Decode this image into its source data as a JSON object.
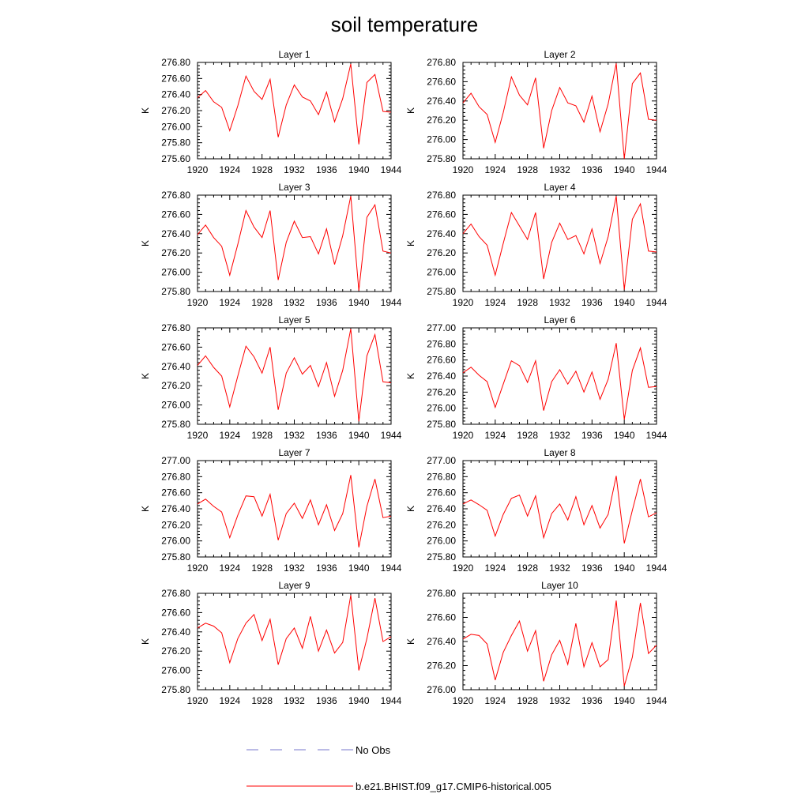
{
  "figure": {
    "title": "soil temperature"
  },
  "legend": {
    "items": [
      {
        "label": "No Obs",
        "color": "#7777cc",
        "style": "dashed"
      },
      {
        "label": "b.e21.BHIST.f09_g17.CMIP6-historical.005",
        "color": "#ff0000",
        "style": "solid"
      }
    ]
  },
  "chart_data": [
    {
      "type": "line",
      "title": "Layer 1",
      "ylabel": "K",
      "xlim": [
        1920,
        1944
      ],
      "xticks": [
        "1920",
        "1924",
        "1928",
        "1932",
        "1936",
        "1940",
        "1944"
      ],
      "ylim": [
        275.6,
        276.8
      ],
      "yticks": [
        "275.60",
        "275.80",
        "276.00",
        "276.20",
        "276.40",
        "276.60",
        "276.80"
      ],
      "x": [
        1920,
        1921,
        1922,
        1923,
        1924,
        1925,
        1926,
        1927,
        1928,
        1929,
        1930,
        1931,
        1932,
        1933,
        1934,
        1935,
        1936,
        1937,
        1938,
        1939,
        1940,
        1941,
        1942,
        1943,
        1944
      ],
      "series": [
        {
          "name": "b.e21.BHIST.f09_g17.CMIP6-historical.005",
          "color": "#ff0000",
          "values": [
            276.36,
            276.45,
            276.31,
            276.24,
            275.95,
            276.26,
            276.63,
            276.44,
            276.34,
            276.59,
            275.87,
            276.27,
            276.52,
            276.37,
            276.32,
            276.15,
            276.43,
            276.06,
            276.35,
            276.78,
            275.78,
            276.55,
            276.65,
            276.19,
            276.18
          ]
        }
      ]
    },
    {
      "type": "line",
      "title": "Layer 2",
      "ylabel": "K",
      "xlim": [
        1920,
        1944
      ],
      "xticks": [
        "1920",
        "1924",
        "1928",
        "1932",
        "1936",
        "1940",
        "1944"
      ],
      "ylim": [
        275.8,
        276.8
      ],
      "yticks": [
        "275.80",
        "276.00",
        "276.20",
        "276.40",
        "276.60",
        "276.80"
      ],
      "x": [
        1920,
        1921,
        1922,
        1923,
        1924,
        1925,
        1926,
        1927,
        1928,
        1929,
        1930,
        1931,
        1932,
        1933,
        1934,
        1935,
        1936,
        1937,
        1938,
        1939,
        1940,
        1941,
        1942,
        1943,
        1944
      ],
      "series": [
        {
          "name": "b.e21.BHIST.f09_g17.CMIP6-historical.005",
          "color": "#ff0000",
          "values": [
            276.38,
            276.48,
            276.34,
            276.26,
            275.97,
            276.28,
            276.65,
            276.46,
            276.36,
            276.64,
            275.91,
            276.3,
            276.54,
            276.38,
            276.35,
            276.18,
            276.45,
            276.08,
            276.37,
            276.79,
            275.8,
            276.58,
            276.69,
            276.21,
            276.2
          ]
        }
      ]
    },
    {
      "type": "line",
      "title": "Layer 3",
      "ylabel": "K",
      "xlim": [
        1920,
        1944
      ],
      "xticks": [
        "1920",
        "1924",
        "1928",
        "1932",
        "1936",
        "1940",
        "1944"
      ],
      "ylim": [
        275.8,
        276.8
      ],
      "yticks": [
        "275.80",
        "276.00",
        "276.20",
        "276.40",
        "276.60",
        "276.80"
      ],
      "x": [
        1920,
        1921,
        1922,
        1923,
        1924,
        1925,
        1926,
        1927,
        1928,
        1929,
        1930,
        1931,
        1932,
        1933,
        1934,
        1935,
        1936,
        1937,
        1938,
        1939,
        1940,
        1941,
        1942,
        1943,
        1944
      ],
      "series": [
        {
          "name": "b.e21.BHIST.f09_g17.CMIP6-historical.005",
          "color": "#ff0000",
          "values": [
            276.39,
            276.49,
            276.36,
            276.27,
            275.97,
            276.29,
            276.64,
            276.47,
            276.36,
            276.64,
            275.92,
            276.31,
            276.53,
            276.36,
            276.37,
            276.19,
            276.45,
            276.08,
            276.38,
            276.79,
            275.81,
            276.57,
            276.7,
            276.22,
            276.2
          ]
        }
      ]
    },
    {
      "type": "line",
      "title": "Layer 4",
      "ylabel": "K",
      "xlim": [
        1920,
        1944
      ],
      "xticks": [
        "1920",
        "1924",
        "1928",
        "1932",
        "1936",
        "1940",
        "1944"
      ],
      "ylim": [
        275.8,
        276.8
      ],
      "yticks": [
        "275.80",
        "276.00",
        "276.20",
        "276.40",
        "276.60",
        "276.80"
      ],
      "x": [
        1920,
        1921,
        1922,
        1923,
        1924,
        1925,
        1926,
        1927,
        1928,
        1929,
        1930,
        1931,
        1932,
        1933,
        1934,
        1935,
        1936,
        1937,
        1938,
        1939,
        1940,
        1941,
        1942,
        1943,
        1944
      ],
      "series": [
        {
          "name": "b.e21.BHIST.f09_g17.CMIP6-historical.005",
          "color": "#ff0000",
          "values": [
            276.4,
            276.5,
            276.37,
            276.28,
            275.97,
            276.3,
            276.62,
            276.48,
            276.34,
            276.62,
            275.93,
            276.31,
            276.51,
            276.34,
            276.38,
            276.19,
            276.45,
            276.09,
            276.37,
            276.79,
            275.82,
            276.55,
            276.71,
            276.22,
            276.21
          ]
        }
      ]
    },
    {
      "type": "line",
      "title": "Layer 5",
      "ylabel": "K",
      "xlim": [
        1920,
        1944
      ],
      "xticks": [
        "1920",
        "1924",
        "1928",
        "1932",
        "1936",
        "1940",
        "1944"
      ],
      "ylim": [
        275.8,
        276.8
      ],
      "yticks": [
        "275.80",
        "276.00",
        "276.20",
        "276.40",
        "276.60",
        "276.80"
      ],
      "x": [
        1920,
        1921,
        1922,
        1923,
        1924,
        1925,
        1926,
        1927,
        1928,
        1929,
        1930,
        1931,
        1932,
        1933,
        1934,
        1935,
        1936,
        1937,
        1938,
        1939,
        1940,
        1941,
        1942,
        1943,
        1944
      ],
      "series": [
        {
          "name": "b.e21.BHIST.f09_g17.CMIP6-historical.005",
          "color": "#ff0000",
          "values": [
            276.41,
            276.51,
            276.39,
            276.3,
            275.98,
            276.3,
            276.61,
            276.5,
            276.33,
            276.6,
            275.95,
            276.33,
            276.49,
            276.32,
            276.41,
            276.19,
            276.44,
            276.09,
            276.36,
            276.79,
            275.83,
            276.51,
            276.73,
            276.24,
            276.23
          ]
        }
      ]
    },
    {
      "type": "line",
      "title": "Layer 6",
      "ylabel": "K",
      "xlim": [
        1920,
        1944
      ],
      "xticks": [
        "1920",
        "1924",
        "1928",
        "1932",
        "1936",
        "1940",
        "1944"
      ],
      "ylim": [
        275.8,
        277.0
      ],
      "yticks": [
        "275.80",
        "276.00",
        "276.20",
        "276.40",
        "276.60",
        "276.80",
        "277.00"
      ],
      "x": [
        1920,
        1921,
        1922,
        1923,
        1924,
        1925,
        1926,
        1927,
        1928,
        1929,
        1930,
        1931,
        1932,
        1933,
        1934,
        1935,
        1936,
        1937,
        1938,
        1939,
        1940,
        1941,
        1942,
        1943,
        1944
      ],
      "series": [
        {
          "name": "b.e21.BHIST.f09_g17.CMIP6-historical.005",
          "color": "#ff0000",
          "values": [
            276.44,
            276.51,
            276.41,
            276.33,
            276.01,
            276.3,
            276.59,
            276.53,
            276.32,
            276.59,
            275.97,
            276.33,
            276.48,
            276.3,
            276.46,
            276.2,
            276.45,
            276.11,
            276.36,
            276.81,
            275.86,
            276.47,
            276.75,
            276.26,
            276.27
          ]
        }
      ]
    },
    {
      "type": "line",
      "title": "Layer 7",
      "ylabel": "K",
      "xlim": [
        1920,
        1944
      ],
      "xticks": [
        "1920",
        "1924",
        "1928",
        "1932",
        "1936",
        "1940",
        "1944"
      ],
      "ylim": [
        275.8,
        277.0
      ],
      "yticks": [
        "275.80",
        "276.00",
        "276.20",
        "276.40",
        "276.60",
        "276.80",
        "277.00"
      ],
      "x": [
        1920,
        1921,
        1922,
        1923,
        1924,
        1925,
        1926,
        1927,
        1928,
        1929,
        1930,
        1931,
        1932,
        1933,
        1934,
        1935,
        1936,
        1937,
        1938,
        1939,
        1940,
        1941,
        1942,
        1943,
        1944
      ],
      "series": [
        {
          "name": "b.e21.BHIST.f09_g17.CMIP6-historical.005",
          "color": "#ff0000",
          "values": [
            276.46,
            276.52,
            276.43,
            276.36,
            276.04,
            276.32,
            276.56,
            276.55,
            276.31,
            276.58,
            276.01,
            276.34,
            276.47,
            276.28,
            276.51,
            276.2,
            276.45,
            276.13,
            276.34,
            276.82,
            275.92,
            276.43,
            276.77,
            276.29,
            276.31
          ]
        }
      ]
    },
    {
      "type": "line",
      "title": "Layer 8",
      "ylabel": "K",
      "xlim": [
        1920,
        1944
      ],
      "xticks": [
        "1920",
        "1924",
        "1928",
        "1932",
        "1936",
        "1940",
        "1944"
      ],
      "ylim": [
        275.8,
        277.0
      ],
      "yticks": [
        "275.80",
        "276.00",
        "276.20",
        "276.40",
        "276.60",
        "276.80",
        "277.00"
      ],
      "x": [
        1920,
        1921,
        1922,
        1923,
        1924,
        1925,
        1926,
        1927,
        1928,
        1929,
        1930,
        1931,
        1932,
        1933,
        1934,
        1935,
        1936,
        1937,
        1938,
        1939,
        1940,
        1941,
        1942,
        1943,
        1944
      ],
      "series": [
        {
          "name": "b.e21.BHIST.f09_g17.CMIP6-historical.005",
          "color": "#ff0000",
          "values": [
            276.46,
            276.51,
            276.45,
            276.38,
            276.06,
            276.33,
            276.53,
            276.57,
            276.31,
            276.56,
            276.04,
            276.34,
            276.46,
            276.26,
            276.55,
            276.2,
            276.44,
            276.16,
            276.33,
            276.81,
            275.97,
            276.38,
            276.77,
            276.3,
            276.35
          ]
        }
      ]
    },
    {
      "type": "line",
      "title": "Layer 9",
      "ylabel": "K",
      "xlim": [
        1920,
        1944
      ],
      "xticks": [
        "1920",
        "1924",
        "1928",
        "1932",
        "1936",
        "1940",
        "1944"
      ],
      "ylim": [
        275.8,
        276.8
      ],
      "yticks": [
        "275.80",
        "276.00",
        "276.20",
        "276.40",
        "276.60",
        "276.80"
      ],
      "x": [
        1920,
        1921,
        1922,
        1923,
        1924,
        1925,
        1926,
        1927,
        1928,
        1929,
        1930,
        1931,
        1932,
        1933,
        1934,
        1935,
        1936,
        1937,
        1938,
        1939,
        1940,
        1941,
        1942,
        1943,
        1944
      ],
      "series": [
        {
          "name": "b.e21.BHIST.f09_g17.CMIP6-historical.005",
          "color": "#ff0000",
          "values": [
            276.44,
            276.49,
            276.46,
            276.39,
            276.08,
            276.33,
            276.49,
            276.58,
            276.31,
            276.53,
            276.06,
            276.33,
            276.44,
            276.23,
            276.56,
            276.2,
            276.42,
            276.18,
            276.29,
            276.78,
            276.0,
            276.33,
            276.75,
            276.3,
            276.35
          ]
        }
      ]
    },
    {
      "type": "line",
      "title": "Layer 10",
      "ylabel": "K",
      "xlim": [
        1920,
        1944
      ],
      "xticks": [
        "1920",
        "1924",
        "1928",
        "1932",
        "1936",
        "1940",
        "1944"
      ],
      "ylim": [
        276.0,
        276.8
      ],
      "yticks": [
        "276.00",
        "276.20",
        "276.40",
        "276.60",
        "276.80"
      ],
      "x": [
        1920,
        1921,
        1922,
        1923,
        1924,
        1925,
        1926,
        1927,
        1928,
        1929,
        1930,
        1931,
        1932,
        1933,
        1934,
        1935,
        1936,
        1937,
        1938,
        1939,
        1940,
        1941,
        1942,
        1943,
        1944
      ],
      "series": [
        {
          "name": "b.e21.BHIST.f09_g17.CMIP6-historical.005",
          "color": "#ff0000",
          "values": [
            276.42,
            276.46,
            276.45,
            276.38,
            276.08,
            276.31,
            276.45,
            276.57,
            276.32,
            276.49,
            276.07,
            276.29,
            276.41,
            276.21,
            276.55,
            276.19,
            276.39,
            276.19,
            276.25,
            276.74,
            276.03,
            276.27,
            276.72,
            276.3,
            276.37
          ]
        }
      ]
    }
  ]
}
